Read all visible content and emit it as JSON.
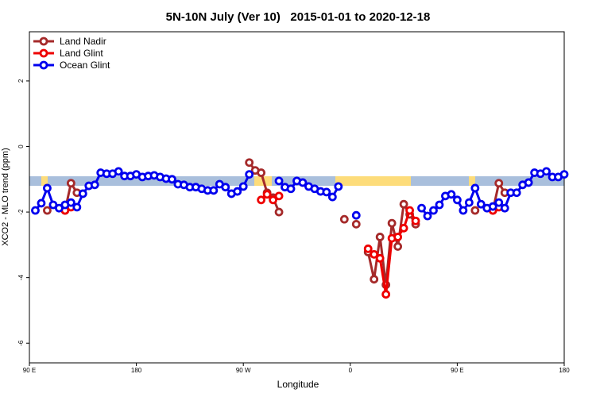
{
  "chart_data": {
    "type": "line",
    "title": "5N-10N July (Ver 10)   2015-01-01 to 2020-12-18",
    "x_label": "Longitude",
    "y_label": "XCO2 - MLO trend (ppm)",
    "x": [
      90,
      95,
      100,
      105,
      110,
      115,
      120,
      125,
      130,
      135,
      140,
      145,
      150,
      155,
      160,
      165,
      170,
      175,
      180,
      185,
      190,
      195,
      200,
      205,
      210,
      215,
      220,
      225,
      230,
      235,
      240,
      245,
      250,
      255,
      260,
      265,
      270,
      275,
      280,
      285,
      290,
      295,
      300,
      305,
      310,
      315,
      320,
      325,
      330,
      335,
      340,
      345,
      350,
      355,
      360,
      365,
      370,
      375,
      380,
      385,
      390,
      395,
      400,
      405,
      410,
      415,
      420,
      425,
      430,
      435,
      440,
      445,
      450,
      455,
      460,
      465,
      470,
      475,
      480,
      485,
      490,
      495,
      500,
      505,
      510,
      515,
      520,
      525,
      530,
      535,
      540
    ],
    "xlim": [
      90,
      540
    ],
    "xticks": [
      {
        "value": 90,
        "label": "90 E"
      },
      180,
      {
        "value": 270,
        "label": "90 W"
      },
      {
        "value": 360,
        "label": "0"
      },
      {
        "value": 450,
        "label": "90 E"
      },
      {
        "value": 540,
        "label": "180"
      }
    ],
    "ylim": [
      -6.6,
      3.5
    ],
    "yticks": [
      -6,
      -4,
      -2,
      0,
      2
    ],
    "legend": "top-left",
    "series": [
      {
        "name": "Land Nadir",
        "color": "#a52a2a",
        "values": [
          null,
          null,
          null,
          -1.95,
          null,
          null,
          -1.95,
          -1.12,
          -1.41,
          null,
          null,
          null,
          null,
          null,
          null,
          null,
          null,
          null,
          null,
          null,
          null,
          null,
          null,
          null,
          null,
          null,
          null,
          null,
          null,
          null,
          null,
          null,
          null,
          null,
          null,
          null,
          null,
          -0.49,
          -0.73,
          -0.8,
          -1.41,
          -1.56,
          -2.0,
          null,
          null,
          null,
          null,
          null,
          null,
          null,
          null,
          null,
          null,
          -2.22,
          null,
          -2.37,
          null,
          -3.22,
          -4.05,
          -2.76,
          -4.22,
          -2.34,
          -3.05,
          -1.76,
          -2.07,
          -2.37,
          null,
          null,
          null,
          null,
          null,
          null,
          null,
          null,
          null,
          -1.95,
          null,
          null,
          -1.95,
          -1.12,
          -1.41,
          null,
          null,
          null,
          null,
          null,
          null,
          null,
          null,
          null,
          null
        ]
      },
      {
        "name": "Land Glint",
        "color": "#ee0000",
        "values": [
          null,
          null,
          null,
          null,
          null,
          null,
          -1.95,
          -1.85,
          null,
          null,
          null,
          null,
          null,
          null,
          null,
          null,
          null,
          null,
          null,
          null,
          null,
          null,
          null,
          null,
          null,
          null,
          null,
          null,
          null,
          null,
          null,
          null,
          null,
          null,
          null,
          null,
          null,
          null,
          null,
          -1.63,
          -1.46,
          -1.63,
          -1.51,
          null,
          null,
          null,
          null,
          null,
          null,
          null,
          null,
          null,
          null,
          null,
          null,
          null,
          null,
          -3.12,
          -3.29,
          -3.41,
          -4.51,
          -2.8,
          -2.76,
          -2.49,
          -1.95,
          -2.27,
          null,
          null,
          null,
          null,
          null,
          null,
          null,
          null,
          null,
          null,
          null,
          null,
          -1.95,
          -1.85,
          null,
          null,
          null,
          null,
          null,
          null,
          null,
          null,
          null,
          null,
          null
        ]
      },
      {
        "name": "Ocean Glint",
        "color": "#0000ee",
        "values": [
          null,
          -1.95,
          -1.73,
          -1.27,
          -1.78,
          -1.88,
          -1.78,
          -1.71,
          -1.85,
          -1.44,
          -1.2,
          -1.17,
          -0.8,
          -0.83,
          -0.83,
          -0.76,
          -0.9,
          -0.9,
          -0.85,
          -0.93,
          -0.9,
          -0.88,
          -0.93,
          -0.98,
          -1.0,
          -1.15,
          -1.17,
          -1.24,
          -1.24,
          -1.29,
          -1.34,
          -1.34,
          -1.15,
          -1.24,
          -1.44,
          -1.37,
          -1.22,
          -0.85,
          null,
          null,
          null,
          null,
          -1.05,
          -1.24,
          -1.29,
          -1.05,
          -1.1,
          -1.22,
          -1.29,
          -1.37,
          -1.39,
          -1.54,
          -1.22,
          null,
          null,
          -2.1,
          null,
          null,
          null,
          null,
          null,
          null,
          null,
          null,
          null,
          null,
          -1.88,
          -2.12,
          -1.95,
          -1.78,
          -1.51,
          -1.46,
          -1.63,
          -1.95,
          -1.71,
          -1.27,
          -1.76,
          -1.88,
          -1.83,
          -1.71,
          -1.88,
          -1.41,
          -1.41,
          -1.17,
          -1.1,
          -0.8,
          -0.83,
          -0.76,
          -0.93,
          -0.93,
          -0.85
        ]
      }
    ]
  }
}
